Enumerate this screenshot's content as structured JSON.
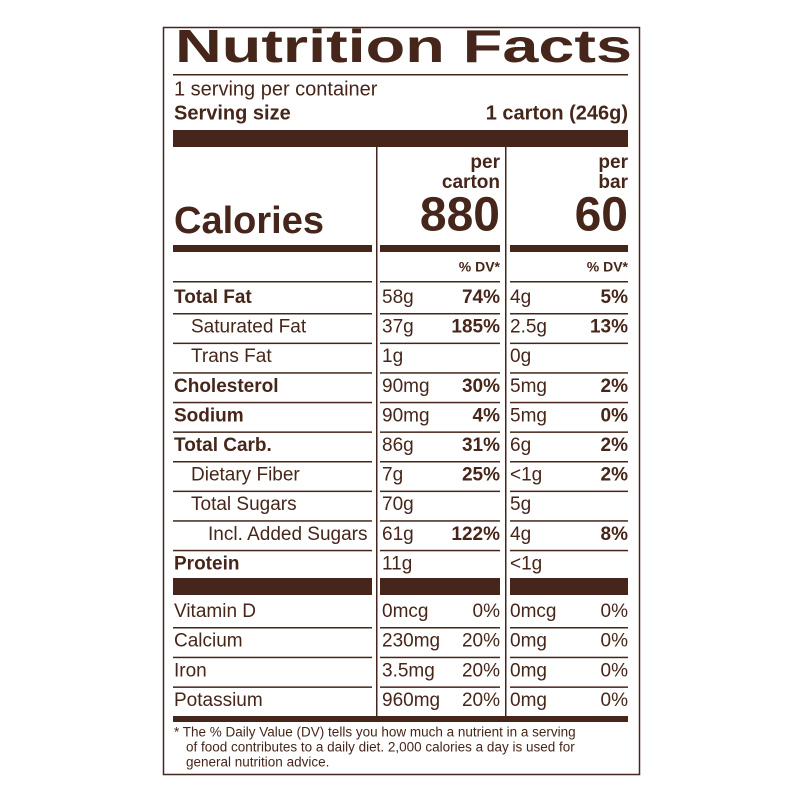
{
  "header": {
    "title": "Nutrition Facts",
    "servings": "1 serving per container",
    "serving_size_label": "Serving size",
    "serving_size_value": "1 carton (246g)"
  },
  "calories_label": "Calories",
  "columns": [
    {
      "heading": [
        "per",
        "carton"
      ],
      "calories": 880,
      "dv_heading": "% DV*"
    },
    {
      "heading": [
        "per",
        "bar"
      ],
      "calories": 60,
      "dv_heading": "% DV*"
    }
  ],
  "nutrients": [
    {
      "name": "Total Fat",
      "indent": 0,
      "bold": true,
      "values": [
        [
          "58g",
          "74%"
        ],
        [
          "4g",
          "5%"
        ]
      ]
    },
    {
      "name": "Saturated Fat",
      "indent": 1,
      "bold": false,
      "values": [
        [
          "37g",
          "185%"
        ],
        [
          "2.5g",
          "13%"
        ]
      ]
    },
    {
      "name": "Trans Fat",
      "indent": 1,
      "bold": false,
      "values": [
        [
          "1g",
          null
        ],
        [
          "0g",
          null
        ]
      ]
    },
    {
      "name": "Cholesterol",
      "indent": 0,
      "bold": true,
      "values": [
        [
          "90mg",
          "30%"
        ],
        [
          "5mg",
          "2%"
        ]
      ]
    },
    {
      "name": "Sodium",
      "indent": 0,
      "bold": true,
      "values": [
        [
          "90mg",
          "4%"
        ],
        [
          "5mg",
          "0%"
        ]
      ]
    },
    {
      "name": "Total Carb.",
      "indent": 0,
      "bold": true,
      "values": [
        [
          "86g",
          "31%"
        ],
        [
          "6g",
          "2%"
        ]
      ]
    },
    {
      "name": "Dietary Fiber",
      "indent": 1,
      "bold": false,
      "values": [
        [
          "7g",
          "25%"
        ],
        [
          "<1g",
          "2%"
        ]
      ]
    },
    {
      "name": "Total Sugars",
      "indent": 1,
      "bold": false,
      "values": [
        [
          "70g",
          null
        ],
        [
          "5g",
          null
        ]
      ]
    },
    {
      "name": "Incl. Added Sugars",
      "indent": 2,
      "bold": false,
      "values": [
        [
          "61g",
          "122%"
        ],
        [
          "4g",
          "8%"
        ]
      ]
    },
    {
      "name": "Protein",
      "indent": 0,
      "bold": true,
      "values": [
        [
          "11g",
          null
        ],
        [
          "<1g",
          null
        ]
      ]
    }
  ],
  "vitamins": [
    {
      "name": "Vitamin D",
      "values": [
        [
          "0mcg",
          "0%"
        ],
        [
          "0mcg",
          "0%"
        ]
      ]
    },
    {
      "name": "Calcium",
      "values": [
        [
          "230mg",
          "20%"
        ],
        [
          "0mg",
          "0%"
        ]
      ]
    },
    {
      "name": "Iron",
      "values": [
        [
          "3.5mg",
          "20%"
        ],
        [
          "0mg",
          "0%"
        ]
      ]
    },
    {
      "name": "Potassium",
      "values": [
        [
          "960mg",
          "20%"
        ],
        [
          "0mg",
          "0%"
        ]
      ]
    }
  ],
  "footnote": [
    "* The % Daily Value (DV) tells you how much a nutrient in a serving",
    "of food contributes to a daily diet. 2,000 calories a day is used for",
    "general nutrition advice."
  ]
}
